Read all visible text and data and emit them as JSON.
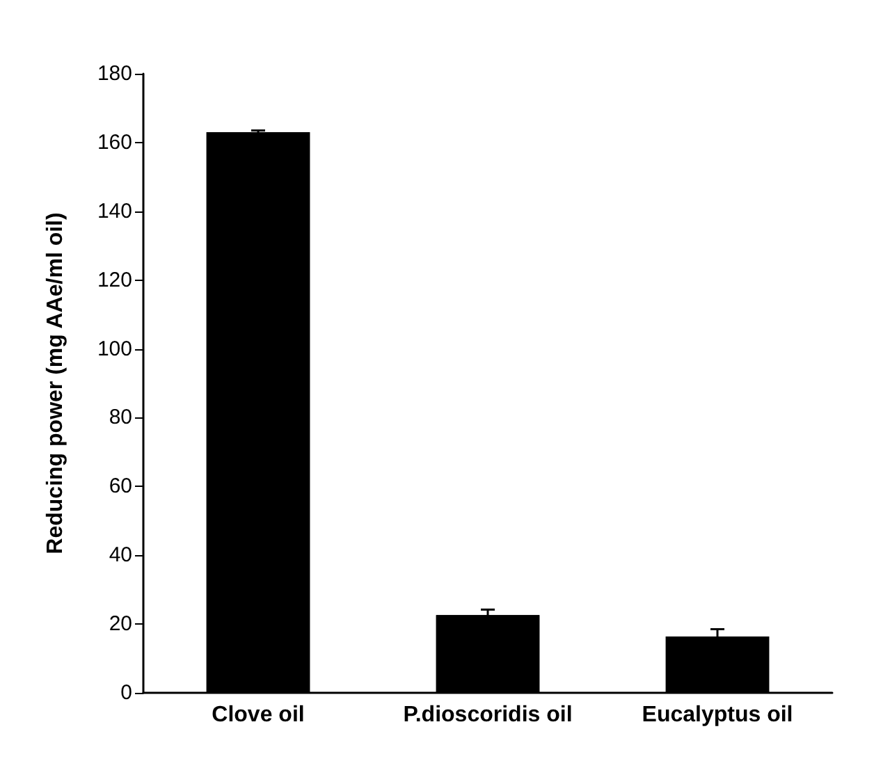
{
  "chart_data": {
    "type": "bar",
    "ylabel": "Reducing power (mg AAe/ml oil)",
    "categories": [
      "Clove oil",
      "P.dioscoridis oil",
      "Eucalyptus oil"
    ],
    "values": [
      163,
      22.6,
      16.4
    ],
    "errors": [
      0.5,
      1.6,
      2.1
    ],
    "color": "#000000",
    "ylim": [
      0,
      180
    ],
    "yticks": [
      0,
      20,
      40,
      60,
      80,
      100,
      120,
      140,
      160,
      180
    ],
    "grid": false
  }
}
